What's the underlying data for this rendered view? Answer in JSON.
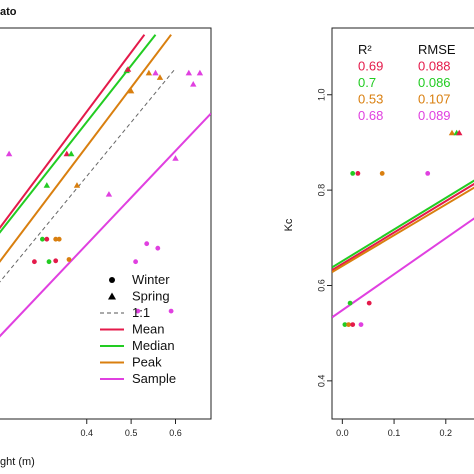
{
  "chart_data": [
    {
      "type": "scatter",
      "title": "ato",
      "xlabel": "ght (m)",
      "ylabel": "",
      "xlim": [
        0.2,
        0.68
      ],
      "ylim": [
        0.28,
        1.15
      ],
      "xticks": [
        0.4,
        0.5,
        0.6
      ],
      "xtick_labels": [
        "0.4",
        "0.5",
        "0.6"
      ],
      "legend": {
        "placement": "bottom-right",
        "entries": [
          {
            "label": "Winter",
            "marker": "circle",
            "color": "#000000"
          },
          {
            "label": "Spring",
            "marker": "triangle",
            "color": "#000000"
          },
          {
            "label": "1:1",
            "line": "dashed",
            "color": "#555555"
          },
          {
            "label": "Mean",
            "line": "solid",
            "color": "#e41a4a"
          },
          {
            "label": "Median",
            "line": "solid",
            "color": "#22cc22"
          },
          {
            "label": "Peak",
            "line": "solid",
            "color": "#d97f0f"
          },
          {
            "label": "Sample",
            "line": "solid",
            "color": "#e040e0"
          }
        ]
      },
      "lines": [
        {
          "name": "Mean",
          "color": "#e41a4a",
          "dashed": false,
          "points": [
            [
              0.2,
              0.7
            ],
            [
              0.53,
              1.135
            ]
          ]
        },
        {
          "name": "Median",
          "color": "#22cc22",
          "dashed": false,
          "points": [
            [
              0.2,
              0.69
            ],
            [
              0.555,
              1.135
            ]
          ]
        },
        {
          "name": "Peak",
          "color": "#d97f0f",
          "dashed": false,
          "points": [
            [
              0.2,
              0.625
            ],
            [
              0.59,
              1.135
            ]
          ]
        },
        {
          "name": "1:1",
          "color": "#666666",
          "dashed": true,
          "points": [
            [
              0.2,
              0.58
            ],
            [
              0.6,
              1.06
            ]
          ]
        },
        {
          "name": "Sample",
          "color": "#e040e0",
          "dashed": false,
          "points": [
            [
              0.2,
              0.46
            ],
            [
              0.68,
              0.96
            ]
          ]
        }
      ],
      "points": [
        {
          "x": 0.355,
          "y": 0.87,
          "marker": "triangle",
          "color": "#e41a4a"
        },
        {
          "x": 0.365,
          "y": 0.87,
          "marker": "triangle",
          "color": "#22cc22"
        },
        {
          "x": 0.49,
          "y": 1.055,
          "marker": "triangle",
          "color": "#22cc22"
        },
        {
          "x": 0.493,
          "y": 1.058,
          "marker": "triangle",
          "color": "#e41a4a"
        },
        {
          "x": 0.5,
          "y": 1.01,
          "marker": "triangle",
          "color": "#d97f0f"
        },
        {
          "x": 0.54,
          "y": 1.05,
          "marker": "triangle",
          "color": "#d97f0f"
        },
        {
          "x": 0.555,
          "y": 1.05,
          "marker": "triangle",
          "color": "#e041e0"
        },
        {
          "x": 0.565,
          "y": 1.04,
          "marker": "triangle",
          "color": "#d97f0f"
        },
        {
          "x": 0.63,
          "y": 1.05,
          "marker": "triangle",
          "color": "#e040e0"
        },
        {
          "x": 0.655,
          "y": 1.05,
          "marker": "triangle",
          "color": "#e040e0"
        },
        {
          "x": 0.64,
          "y": 1.025,
          "marker": "triangle",
          "color": "#e040e0"
        },
        {
          "x": 0.225,
          "y": 0.87,
          "marker": "triangle",
          "color": "#e041e0"
        },
        {
          "x": 0.31,
          "y": 0.8,
          "marker": "triangle",
          "color": "#22cc22"
        },
        {
          "x": 0.378,
          "y": 0.8,
          "marker": "triangle",
          "color": "#d97f0f"
        },
        {
          "x": 0.45,
          "y": 0.78,
          "marker": "triangle",
          "color": "#e040e0"
        },
        {
          "x": 0.6,
          "y": 0.86,
          "marker": "triangle",
          "color": "#e040e0"
        },
        {
          "x": 0.3,
          "y": 0.68,
          "marker": "circle",
          "color": "#22cc22"
        },
        {
          "x": 0.31,
          "y": 0.68,
          "marker": "circle",
          "color": "#e41a4a"
        },
        {
          "x": 0.33,
          "y": 0.68,
          "marker": "circle",
          "color": "#d97f0f"
        },
        {
          "x": 0.338,
          "y": 0.68,
          "marker": "circle",
          "color": "#d97f0f"
        },
        {
          "x": 0.315,
          "y": 0.63,
          "marker": "circle",
          "color": "#22cc22"
        },
        {
          "x": 0.33,
          "y": 0.632,
          "marker": "circle",
          "color": "#e41a4a"
        },
        {
          "x": 0.36,
          "y": 0.635,
          "marker": "circle",
          "color": "#d97f0f"
        },
        {
          "x": 0.282,
          "y": 0.63,
          "marker": "circle",
          "color": "#e41a4a"
        },
        {
          "x": 0.51,
          "y": 0.63,
          "marker": "circle",
          "color": "#e040e0"
        },
        {
          "x": 0.535,
          "y": 0.67,
          "marker": "circle",
          "color": "#e040e0"
        },
        {
          "x": 0.56,
          "y": 0.66,
          "marker": "circle",
          "color": "#e040e0"
        },
        {
          "x": 0.59,
          "y": 0.52,
          "marker": "circle",
          "color": "#e040e0"
        },
        {
          "x": 0.515,
          "y": 0.52,
          "marker": "circle",
          "color": "#e040e0"
        }
      ]
    },
    {
      "type": "scatter",
      "title": "",
      "xlabel": "",
      "ylabel": "Kc",
      "xlim": [
        -0.02,
        0.27
      ],
      "ylim": [
        0.32,
        1.14
      ],
      "xticks": [
        0.0,
        0.1,
        0.2
      ],
      "xtick_labels": [
        "0.0",
        "0.1",
        "0.2"
      ],
      "yticks": [
        0.4,
        0.6,
        0.8,
        1.0
      ],
      "ytick_labels": [
        "0.4",
        "0.6",
        "0.8",
        "1.0"
      ],
      "stats": {
        "headers": [
          "R²",
          "RMSE"
        ],
        "rows": [
          {
            "r2": "0.69",
            "rmse": "0.088",
            "color": "#e41a4a"
          },
          {
            "r2": "0.7",
            "rmse": "0.086",
            "color": "#22cc22"
          },
          {
            "r2": "0.53",
            "rmse": "0.107",
            "color": "#d97f0f"
          },
          {
            "r2": "0.68",
            "rmse": "0.089",
            "color": "#e040e0"
          }
        ]
      },
      "lines": [
        {
          "name": "Median",
          "color": "#22cc22",
          "dashed": false,
          "points": [
            [
              -0.02,
              0.638
            ],
            [
              0.27,
              0.83
            ]
          ]
        },
        {
          "name": "Mean",
          "color": "#e41a4a",
          "dashed": false,
          "points": [
            [
              -0.02,
              0.632
            ],
            [
              0.27,
              0.823
            ]
          ]
        },
        {
          "name": "Peak",
          "color": "#d97f0f",
          "dashed": false,
          "points": [
            [
              -0.02,
              0.628
            ],
            [
              0.27,
              0.815
            ]
          ]
        },
        {
          "name": "Sample",
          "color": "#e040e0",
          "dashed": false,
          "points": [
            [
              -0.02,
              0.533
            ],
            [
              0.27,
              0.752
            ]
          ]
        }
      ],
      "points": [
        {
          "x": 0.02,
          "y": 0.835,
          "marker": "circle",
          "color": "#22cc22"
        },
        {
          "x": 0.03,
          "y": 0.835,
          "marker": "circle",
          "color": "#e41a4a"
        },
        {
          "x": 0.077,
          "y": 0.835,
          "marker": "circle",
          "color": "#d97f0f"
        },
        {
          "x": 0.165,
          "y": 0.835,
          "marker": "circle",
          "color": "#e040e0"
        },
        {
          "x": 0.015,
          "y": 0.563,
          "marker": "circle",
          "color": "#22cc22"
        },
        {
          "x": 0.052,
          "y": 0.563,
          "marker": "circle",
          "color": "#e41a4a"
        },
        {
          "x": 0.005,
          "y": 0.518,
          "marker": "circle",
          "color": "#22cc22"
        },
        {
          "x": 0.012,
          "y": 0.518,
          "marker": "circle",
          "color": "#d97f0f"
        },
        {
          "x": 0.02,
          "y": 0.518,
          "marker": "circle",
          "color": "#e41a4a"
        },
        {
          "x": 0.036,
          "y": 0.518,
          "marker": "circle",
          "color": "#e040e0"
        },
        {
          "x": 0.212,
          "y": 0.92,
          "marker": "triangle",
          "color": "#d97f0f"
        },
        {
          "x": 0.221,
          "y": 0.92,
          "marker": "triangle",
          "color": "#22cc22"
        },
        {
          "x": 0.226,
          "y": 0.92,
          "marker": "triangle",
          "color": "#e41a4a"
        }
      ]
    }
  ]
}
